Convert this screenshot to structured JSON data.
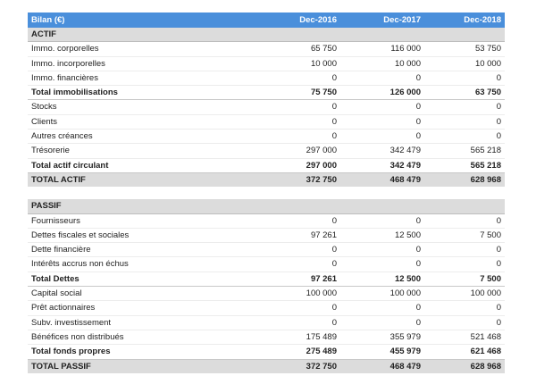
{
  "header": {
    "title": "Bilan (€)",
    "columns": [
      "Dec-2016",
      "Dec-2017",
      "Dec-2018"
    ]
  },
  "actif": {
    "title": "ACTIF",
    "rows": [
      {
        "label": "Immo. corporelles",
        "values": [
          "65 750",
          "116 000",
          "53 750"
        ],
        "type": "item"
      },
      {
        "label": "Immo. incorporelles",
        "values": [
          "10 000",
          "10 000",
          "10 000"
        ],
        "type": "item"
      },
      {
        "label": "Immo. financières",
        "values": [
          "0",
          "0",
          "0"
        ],
        "type": "item"
      },
      {
        "label": "Total immobilisations",
        "values": [
          "75 750",
          "126 000",
          "63 750"
        ],
        "type": "total"
      },
      {
        "label": "Stocks",
        "values": [
          "0",
          "0",
          "0"
        ],
        "type": "item"
      },
      {
        "label": "Clients",
        "values": [
          "0",
          "0",
          "0"
        ],
        "type": "item"
      },
      {
        "label": "Autres créances",
        "values": [
          "0",
          "0",
          "0"
        ],
        "type": "item"
      },
      {
        "label": "Trésorerie",
        "values": [
          "297 000",
          "342 479",
          "565 218"
        ],
        "type": "item"
      },
      {
        "label": "Total actif circulant",
        "values": [
          "297 000",
          "342 479",
          "565 218"
        ],
        "type": "total"
      },
      {
        "label": "TOTAL ACTIF",
        "values": [
          "372 750",
          "468 479",
          "628 968"
        ],
        "type": "grand"
      }
    ]
  },
  "passif": {
    "title": "PASSIF",
    "rows": [
      {
        "label": "Fournisseurs",
        "values": [
          "0",
          "0",
          "0"
        ],
        "type": "item"
      },
      {
        "label": "Dettes fiscales et sociales",
        "values": [
          "97 261",
          "12 500",
          "7 500"
        ],
        "type": "item"
      },
      {
        "label": "Dette financière",
        "values": [
          "0",
          "0",
          "0"
        ],
        "type": "item"
      },
      {
        "label": "Intérêts accrus non échus",
        "values": [
          "0",
          "0",
          "0"
        ],
        "type": "item"
      },
      {
        "label": "Total Dettes",
        "values": [
          "97 261",
          "12 500",
          "7 500"
        ],
        "type": "total"
      },
      {
        "label": "Capital social",
        "values": [
          "100 000",
          "100 000",
          "100 000"
        ],
        "type": "item"
      },
      {
        "label": "Prêt actionnaires",
        "values": [
          "0",
          "0",
          "0"
        ],
        "type": "item"
      },
      {
        "label": "Subv. investissement",
        "values": [
          "0",
          "0",
          "0"
        ],
        "type": "item"
      },
      {
        "label": "Bénéfices non distribués",
        "values": [
          "175 489",
          "355 979",
          "521 468"
        ],
        "type": "item"
      },
      {
        "label": "Total fonds propres",
        "values": [
          "275 489",
          "455 979",
          "621 468"
        ],
        "type": "total"
      },
      {
        "label": "TOTAL PASSIF",
        "values": [
          "372 750",
          "468 479",
          "628 968"
        ],
        "type": "grand"
      }
    ]
  },
  "colors": {
    "header_bg": "#4a8fdb",
    "section_bg": "#dcdcdc"
  }
}
